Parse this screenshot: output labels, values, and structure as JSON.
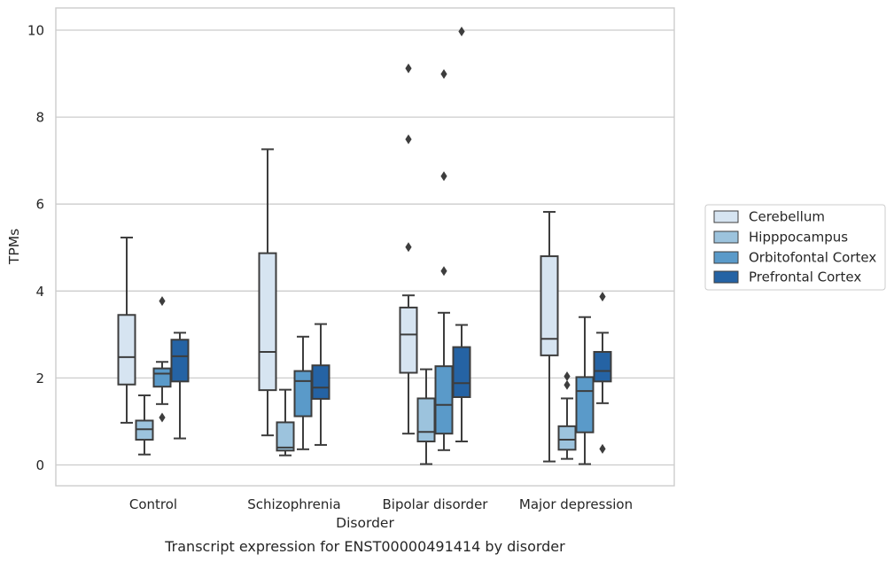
{
  "caption": "Transcript expression for ENST00000491414 by disorder",
  "chart_data": {
    "type": "box",
    "xlabel": "Disorder",
    "ylabel": "TPMs",
    "ylim": [
      -0.5,
      10.5
    ],
    "yticks": [
      0,
      2,
      4,
      6,
      8,
      10
    ],
    "grid": "horizontal",
    "legend_position": "right",
    "categories": [
      "Control",
      "Schizophrenia",
      "Bipolar disorder",
      "Major depression"
    ],
    "series": [
      {
        "name": "Cerebellum",
        "color": "#d6e4f1",
        "boxes": [
          {
            "whislo": 0.97,
            "q1": 1.85,
            "med": 2.48,
            "q3": 3.45,
            "whishi": 5.23,
            "fliers": []
          },
          {
            "whislo": 0.68,
            "q1": 1.72,
            "med": 2.6,
            "q3": 4.87,
            "whishi": 7.26,
            "fliers": []
          },
          {
            "whislo": 0.72,
            "q1": 2.12,
            "med": 3.0,
            "q3": 3.62,
            "whishi": 3.9,
            "fliers": [
              5.01,
              7.49,
              9.12
            ]
          },
          {
            "whislo": 0.08,
            "q1": 2.52,
            "med": 2.9,
            "q3": 4.8,
            "whishi": 5.82,
            "fliers": []
          }
        ]
      },
      {
        "name": "Hipppocampus",
        "color": "#9cc3dd",
        "boxes": [
          {
            "whislo": 0.24,
            "q1": 0.58,
            "med": 0.82,
            "q3": 1.02,
            "whishi": 1.6,
            "fliers": []
          },
          {
            "whislo": 0.22,
            "q1": 0.33,
            "med": 0.4,
            "q3": 0.98,
            "whishi": 1.73,
            "fliers": []
          },
          {
            "whislo": 0.02,
            "q1": 0.54,
            "med": 0.76,
            "q3": 1.53,
            "whishi": 2.2,
            "fliers": []
          },
          {
            "whislo": 0.14,
            "q1": 0.35,
            "med": 0.58,
            "q3": 0.89,
            "whishi": 1.53,
            "fliers": [
              1.84,
              2.04
            ]
          }
        ]
      },
      {
        "name": "Orbitofontal Cortex",
        "color": "#5a9ac9",
        "boxes": [
          {
            "whislo": 1.4,
            "q1": 1.8,
            "med": 2.1,
            "q3": 2.22,
            "whishi": 2.37,
            "fliers": [
              1.09,
              3.77
            ]
          },
          {
            "whislo": 0.36,
            "q1": 1.12,
            "med": 1.93,
            "q3": 2.16,
            "whishi": 2.95,
            "fliers": []
          },
          {
            "whislo": 0.34,
            "q1": 0.72,
            "med": 1.38,
            "q3": 2.27,
            "whishi": 3.5,
            "fliers": [
              4.46,
              6.64,
              8.99
            ]
          },
          {
            "whislo": 0.02,
            "q1": 0.75,
            "med": 1.7,
            "q3": 2.02,
            "whishi": 3.4,
            "fliers": []
          }
        ]
      },
      {
        "name": "Prefrontal Cortex",
        "color": "#2563a4",
        "boxes": [
          {
            "whislo": 0.61,
            "q1": 1.92,
            "med": 2.5,
            "q3": 2.88,
            "whishi": 3.04,
            "fliers": []
          },
          {
            "whislo": 0.46,
            "q1": 1.52,
            "med": 1.78,
            "q3": 2.29,
            "whishi": 3.24,
            "fliers": []
          },
          {
            "whislo": 0.54,
            "q1": 1.56,
            "med": 1.88,
            "q3": 2.71,
            "whishi": 3.22,
            "fliers": [
              9.97
            ]
          },
          {
            "whislo": 1.42,
            "q1": 1.92,
            "med": 2.16,
            "q3": 2.6,
            "whishi": 3.04,
            "fliers": [
              0.37,
              3.87
            ]
          }
        ]
      }
    ]
  }
}
